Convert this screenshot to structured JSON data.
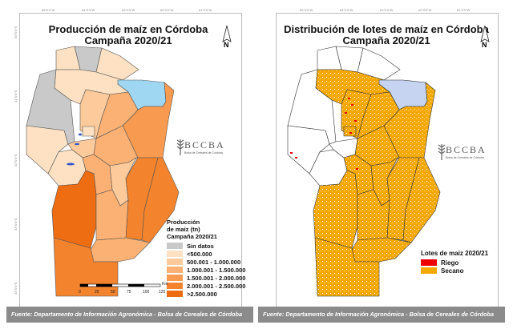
{
  "graticule": {
    "top": [
      "65°0'0\"W",
      "64°0'0\"W",
      "63°0'0\"W",
      "62°0'0\"W",
      "61°0'0\"W"
    ],
    "side": [
      "30°0'0\"S",
      "31°0'0\"S",
      "32°0'0\"S",
      "33°0'0\"S",
      "34°0'0\"S"
    ]
  },
  "north_label": "N",
  "left": {
    "title_line1": "Producción de maíz en Córdoba",
    "title_line2": "Campaña 2020/21",
    "legend": {
      "title_lines": [
        "Producción",
        "de maiz (tn)",
        "Campaña 2020/21"
      ],
      "items": [
        {
          "label": "Sin datos",
          "color": "#c9c9c9"
        },
        {
          "label": "<500.000",
          "color": "#fde1c2"
        },
        {
          "label": "500.001 - 1.000.000",
          "color": "#fcca9b"
        },
        {
          "label": "1.000.001 - 1.500.000",
          "color": "#fbb173"
        },
        {
          "label": "1.500.001 - 2.000.000",
          "color": "#f89a4f"
        },
        {
          "label": "2.000.001 - 2.500.000",
          "color": "#f3832d"
        },
        {
          "label": ">2.500.000",
          "color": "#ee6c12"
        }
      ]
    },
    "department_classes": [
      0,
      1,
      1,
      0,
      1,
      "blue",
      4,
      3,
      2,
      1,
      3,
      1,
      2,
      1,
      3,
      2,
      5,
      5,
      6,
      3,
      3,
      5
    ],
    "footer": "Fuente: Departamento de Información Agronómica - Bolsa de Cereales de Córdoba"
  },
  "right": {
    "title_line1": "Distribución de lotes de maíz en Córdoba",
    "title_line2": "Campaña 2020/21",
    "legend": {
      "title": "Lotes de maiz 2020/21",
      "items": [
        {
          "label": "Riego",
          "color": "#ee0000"
        },
        {
          "label": "Secano",
          "color": "#f6a800"
        }
      ]
    },
    "department_fill": [
      "white",
      "white",
      "white",
      "white",
      "partial",
      "blue",
      "secano",
      "secano",
      "partial",
      "secano",
      "secano",
      "white",
      "white",
      "white",
      "secano",
      "secano",
      "secano",
      "secano",
      "secano",
      "secano",
      "secano",
      "secano"
    ],
    "footer": "Fuente: Departamento de Información Agronómica - Bolsa de Cereales de Córdoba"
  },
  "logo": {
    "brand": "BCCBA",
    "subtitle": "Bolsa de Cereales de Córdoba"
  },
  "scale_bar": {
    "unit": "Km",
    "ticks": [
      "0",
      "25",
      "50",
      "75",
      "100",
      "125"
    ]
  },
  "colors": {
    "blue_area_left": "#9fd7f3",
    "blue_area_right": "#c6d3f1",
    "secano": "#f6a800",
    "riego": "#ee0000",
    "footer": "#8b8b8b"
  }
}
